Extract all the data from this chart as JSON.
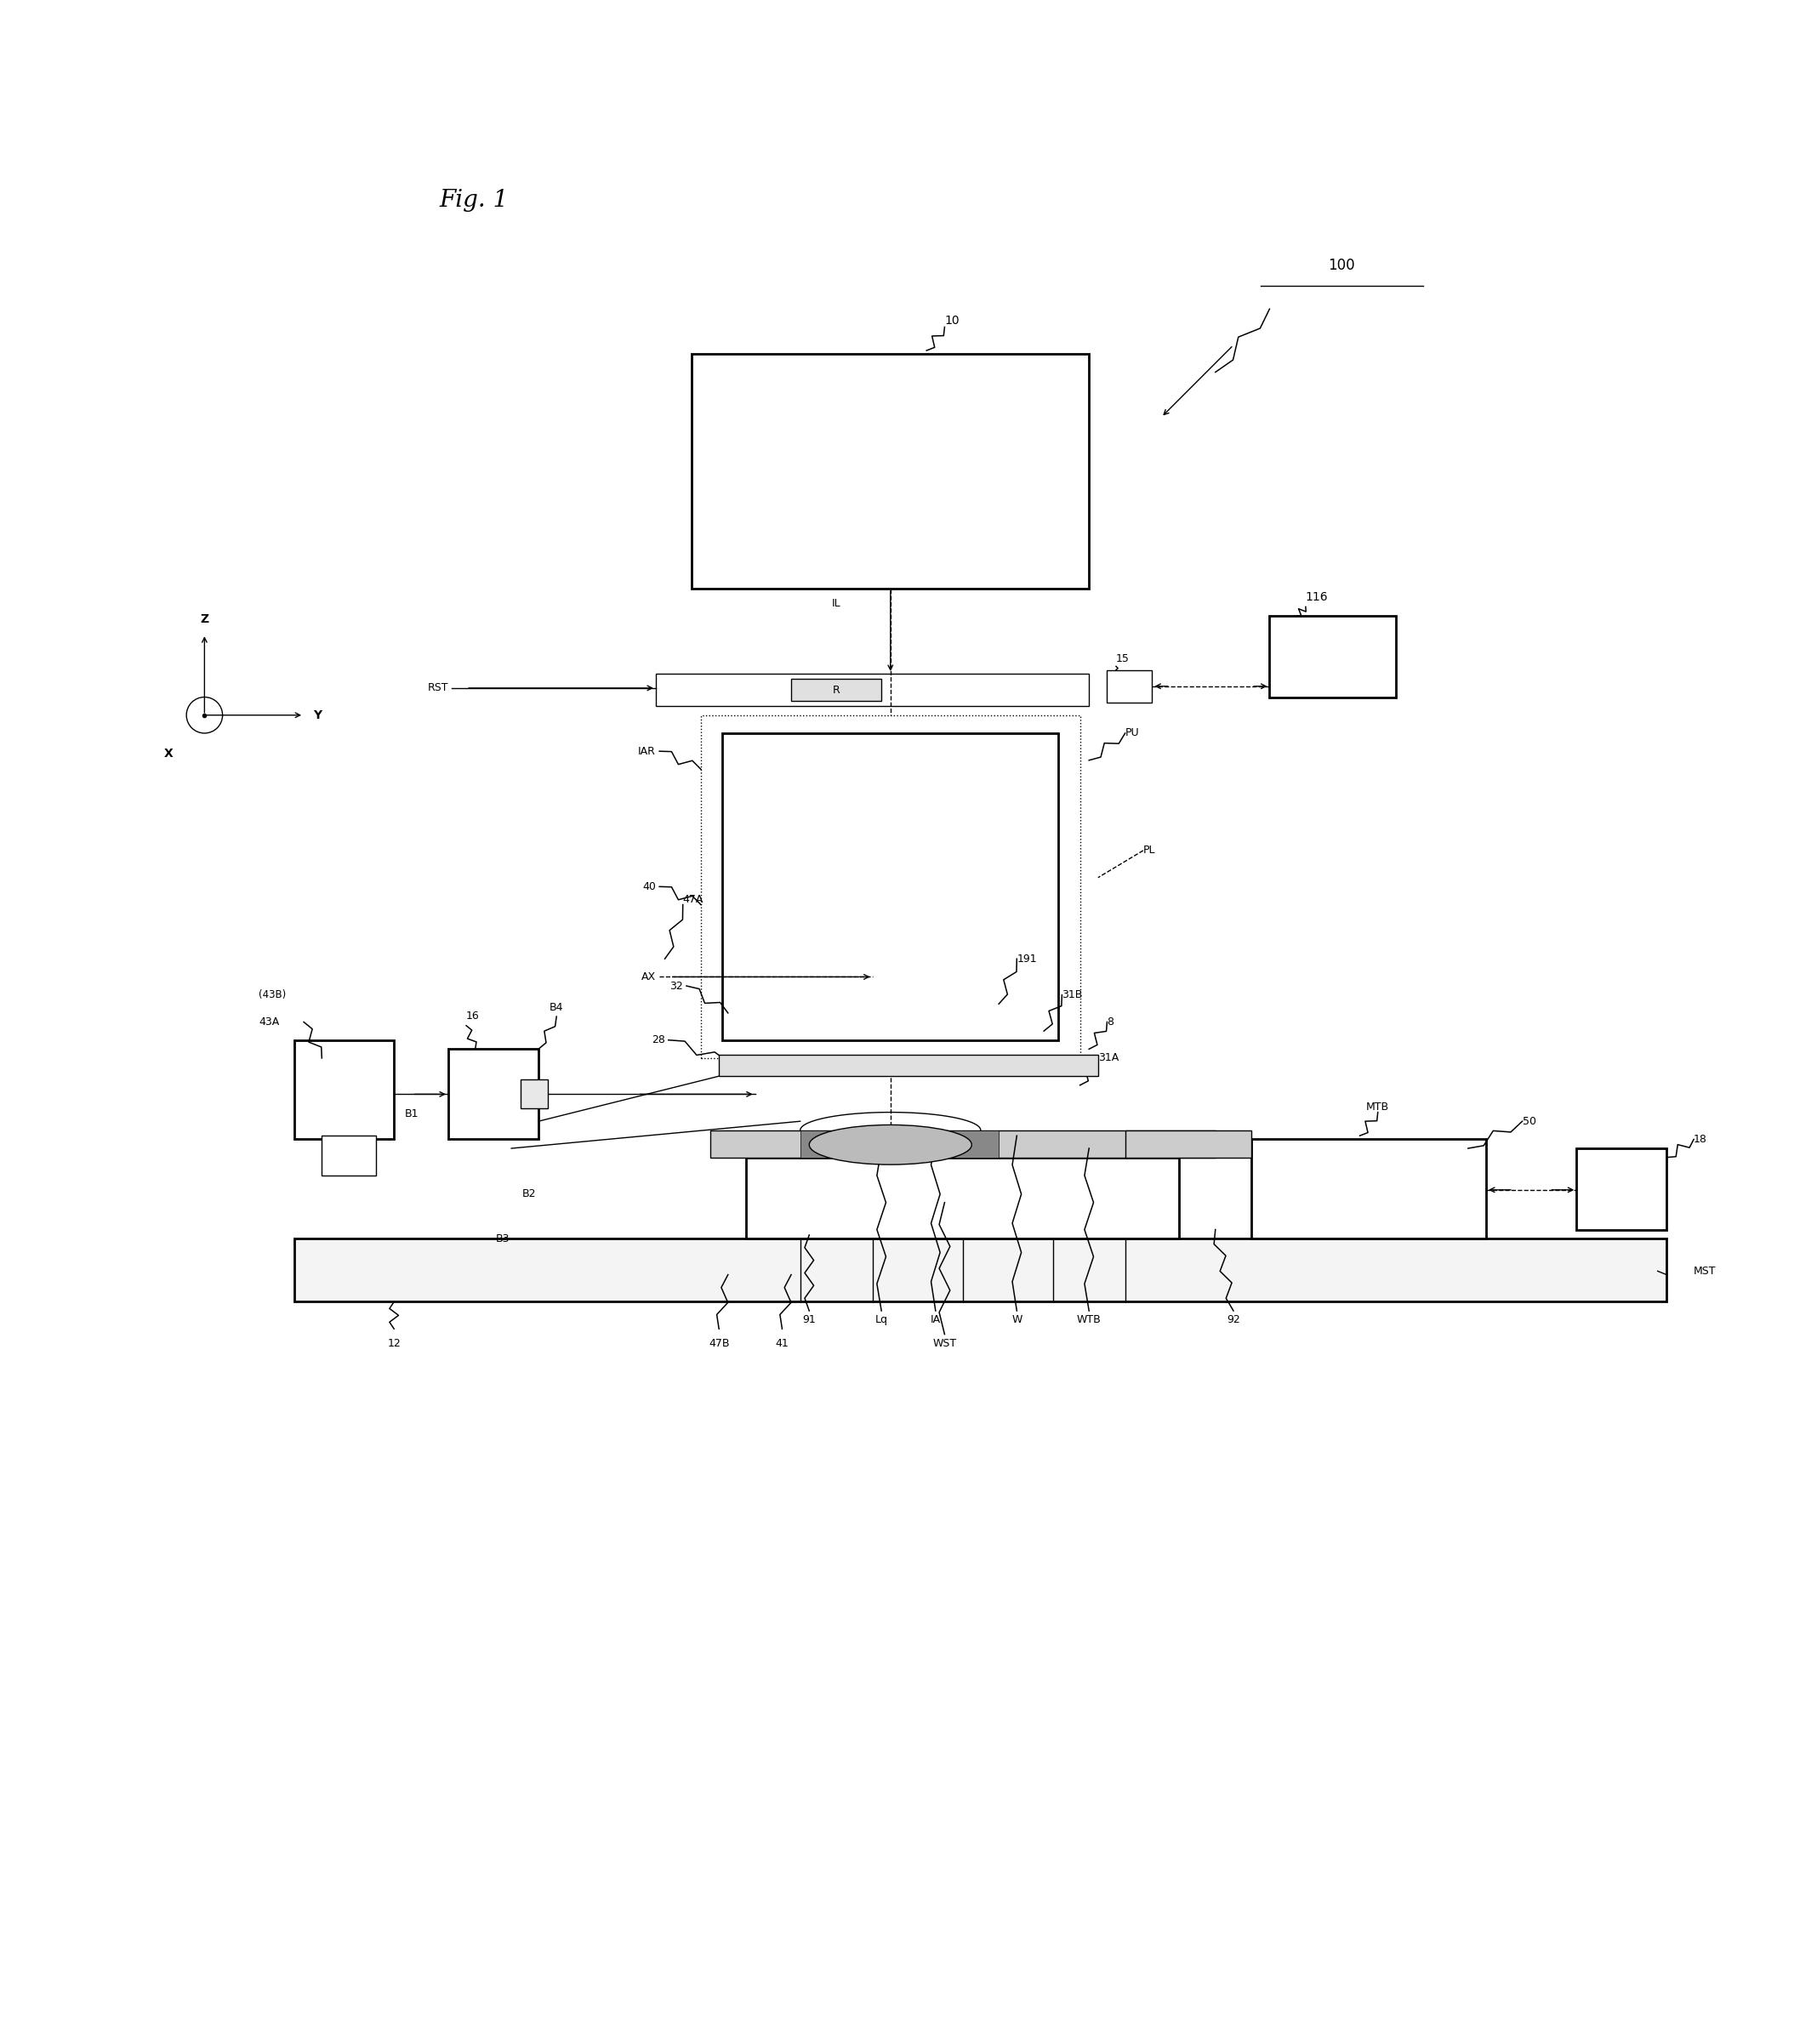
{
  "bg_color": "#ffffff",
  "fig_width": 21.36,
  "fig_height": 24.03,
  "labels": {
    "fig_title": "Fig. 1",
    "system_label": "100",
    "illumination": "10",
    "reticle_stage": "RST",
    "projection": "PU",
    "iar": "IAR",
    "pl": "PL",
    "num40": "40",
    "ax": "AX",
    "num15": "15",
    "r": "R",
    "il": "IL",
    "num116": "116",
    "num47a": "47A",
    "num32": "32",
    "num28": "28",
    "num16": "16",
    "b4": "B4",
    "b1": "B1",
    "num43a": "43A",
    "num43b": "(43B)",
    "b2": "B2",
    "b3": "B3",
    "num47b": "47B",
    "num41": "41",
    "num91": "91",
    "ia": "IA",
    "lq": "Lq",
    "w": "W",
    "wst": "WST",
    "wtb": "WTB",
    "num92": "92",
    "num8": "8",
    "num31b": "31B",
    "num191": "191",
    "num31a": "31A",
    "mtb": "MTB",
    "num50": "50",
    "num18": "18",
    "mst": "MST",
    "num12": "12",
    "z_label": "Z",
    "x_label": "X",
    "y_label": "Y"
  }
}
